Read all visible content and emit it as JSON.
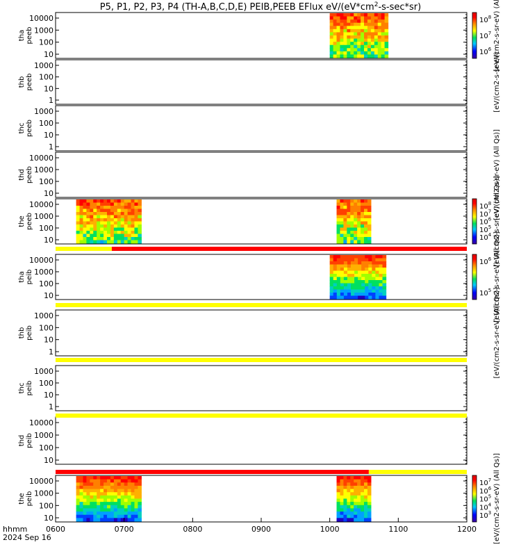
{
  "chart_data": {
    "type": "heatmap",
    "title": "P5, P1, P2, P3, P4 (TH-A,B,C,D,E) PEIB,PEEB EFlux eV/(eV*cm",
    "title_sup": "2",
    "title_tail": "-s-sec*sr)",
    "x_ticks": [
      "0600",
      "0700",
      "0800",
      "0900",
      "1000",
      "1100",
      "1200"
    ],
    "x_range_hours": [
      6,
      12
    ],
    "x_prefix": "hhmm",
    "date_label": "2024 Sep 16",
    "panels": [
      {
        "probe": "tha",
        "species": "peeb",
        "y_ticks": [
          "10000",
          "1000",
          "100",
          "10"
        ],
        "data": true,
        "colorbar": true,
        "cb_ticks": [
          "10",
          "10",
          "10"
        ],
        "cb_exps": [
          "8",
          "7",
          "6"
        ],
        "cb_label": "[eV/(cm2-s-sr-eV) (Al",
        "segments": [
          [
            10.0,
            10.85
          ]
        ]
      },
      {
        "probe": "thb",
        "species": "peeb",
        "y_ticks": [
          "1000",
          "100",
          "10",
          "1"
        ],
        "data": false,
        "colorbar": false,
        "cb_label": "[eV/(cm2-s-sr-eV)"
      },
      {
        "probe": "thc",
        "species": "peeb",
        "y_ticks": [
          "1000",
          "100",
          "10",
          "1"
        ],
        "data": false,
        "colorbar": false
      },
      {
        "probe": "thd",
        "species": "peeb",
        "y_ticks": [
          "10000",
          "1000",
          "100",
          "10"
        ],
        "data": false,
        "colorbar": false,
        "cb_label": "[eV/(cm2-s-sr-eV) (All Qs)]"
      },
      {
        "probe": "the",
        "species": "peeb",
        "y_ticks": [
          "10000",
          "1000",
          "100",
          "10"
        ],
        "data": true,
        "colorbar": true,
        "cb_ticks": [
          "10",
          "10",
          "10",
          "10",
          "10"
        ],
        "cb_exps": [
          "8",
          "7",
          "6",
          "5",
          "4"
        ],
        "cb_label": "[eV/(cm2-s-sr-eV) (All Qs)]",
        "segments": [
          [
            6.3,
            7.25
          ],
          [
            10.1,
            10.6
          ]
        ]
      },
      {
        "probe": "tha",
        "species": "peib",
        "y_ticks": [
          "10000",
          "1000",
          "100",
          "10"
        ],
        "data": true,
        "colorbar": true,
        "cb_ticks": [
          "10",
          "10"
        ],
        "cb_exps": [
          "6",
          "5"
        ],
        "cb_label": "[eV/(cm2-s-sr-eV) (All Qs)]",
        "segments": [
          [
            10.0,
            10.82
          ]
        ]
      },
      {
        "probe": "thb",
        "species": "peib",
        "y_ticks": [
          "1000",
          "100",
          "10",
          "1"
        ],
        "data": false,
        "colorbar": false,
        "cb_label": "[eV/(cm2-s-sr-eV) (All Qs)]"
      },
      {
        "probe": "thc",
        "species": "peib",
        "y_ticks": [
          "1000",
          "100",
          "10",
          "1"
        ],
        "data": false,
        "colorbar": false
      },
      {
        "probe": "thd",
        "species": "peib",
        "y_ticks": [
          "10000",
          "1000",
          "100",
          "10"
        ],
        "data": false,
        "colorbar": false
      },
      {
        "probe": "the",
        "species": "peib",
        "y_ticks": [
          "10000",
          "1000",
          "100",
          "10"
        ],
        "data": true,
        "colorbar": true,
        "cb_ticks": [
          "10",
          "10",
          "10",
          "10",
          "10"
        ],
        "cb_exps": [
          "7",
          "6",
          "5",
          "4",
          "3"
        ],
        "cb_label": "[eV/(cm2-s-sr-eV) (All Qs)]",
        "segments": [
          [
            6.3,
            7.25
          ],
          [
            10.1,
            10.6
          ]
        ]
      }
    ],
    "state_bars": [
      {
        "after_panel": 4,
        "segments": [
          {
            "from": 6.0,
            "to": 6.82,
            "color": "#ffff00"
          },
          {
            "from": 6.82,
            "to": 12.0,
            "color": "#ff0000"
          }
        ]
      },
      {
        "after_panel": 5,
        "segments": [
          {
            "from": 6.0,
            "to": 12.0,
            "color": "#ffff00"
          }
        ]
      },
      {
        "after_panel": 6,
        "segments": [
          {
            "from": 6.0,
            "to": 12.0,
            "color": "#ffff00"
          }
        ]
      },
      {
        "after_panel": 7,
        "segments": [
          {
            "from": 6.0,
            "to": 12.0,
            "color": "#ffff00"
          }
        ]
      },
      {
        "after_panel": 8,
        "segments": [
          {
            "from": 6.0,
            "to": 10.57,
            "color": "#ff0000"
          },
          {
            "from": 10.57,
            "to": 12.0,
            "color": "#ffff00"
          }
        ]
      }
    ]
  }
}
